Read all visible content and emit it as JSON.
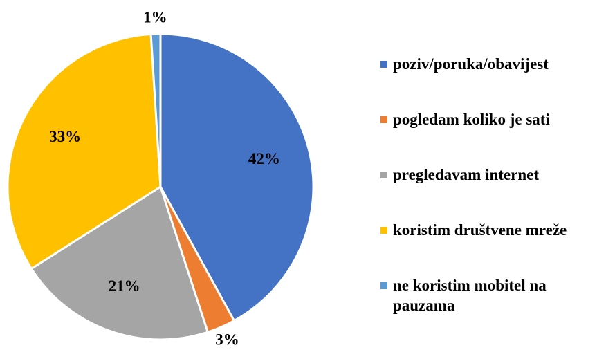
{
  "chart_data": {
    "type": "pie",
    "categories": [
      "poziv/poruka/obavijest",
      "pogledam koliko je sati",
      "pregledavam internet",
      "koristim društvene mreže",
      "ne koristim mobitel na pauzama"
    ],
    "values": [
      42,
      3,
      21,
      33,
      1
    ],
    "value_labels": [
      "42%",
      "3%",
      "21%",
      "33%",
      "1%"
    ],
    "colors": [
      "#4472c4",
      "#ed7d31",
      "#a5a5a5",
      "#ffc000",
      "#5b9bd5"
    ],
    "legend": "right"
  }
}
